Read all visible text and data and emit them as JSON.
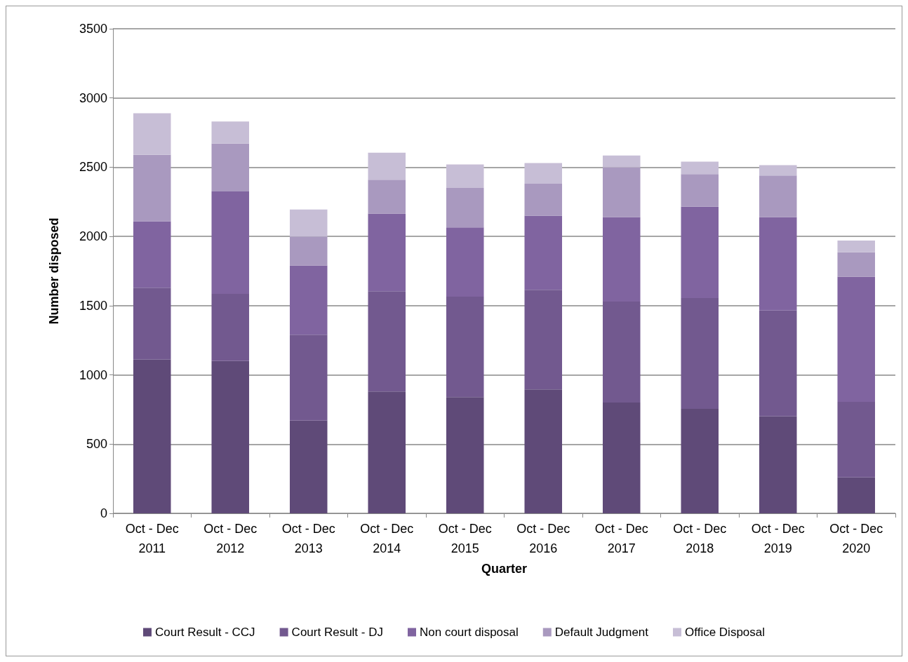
{
  "chart_data": {
    "type": "bar",
    "stacked": true,
    "xlabel": "Quarter",
    "ylabel": "Number disposed",
    "categories": [
      "Oct - Dec\n2011",
      "Oct - Dec\n2012",
      "Oct - Dec\n2013",
      "Oct - Dec\n2014",
      "Oct - Dec\n2015",
      "Oct - Dec\n2016",
      "Oct - Dec\n2017",
      "Oct - Dec\n2018",
      "Oct - Dec\n2019",
      "Oct - Dec\n2020"
    ],
    "series": [
      {
        "name": "Court Result - CCJ",
        "color": "#5f4a78",
        "values": [
          1110,
          1100,
          670,
          880,
          840,
          895,
          800,
          755,
          700,
          260
        ]
      },
      {
        "name": "Court Result - DJ",
        "color": "#72598f",
        "values": [
          520,
          485,
          620,
          725,
          725,
          720,
          730,
          800,
          765,
          545
        ]
      },
      {
        "name": "Non court disposal",
        "color": "#8064a0",
        "values": [
          480,
          740,
          500,
          560,
          500,
          535,
          610,
          660,
          675,
          905
        ]
      },
      {
        "name": "Default Judgment",
        "color": "#a999bf",
        "values": [
          480,
          345,
          210,
          245,
          285,
          230,
          360,
          235,
          300,
          175
        ]
      },
      {
        "name": "Office Disposal",
        "color": "#c7bed6",
        "values": [
          300,
          160,
          195,
          195,
          170,
          150,
          85,
          90,
          75,
          85
        ]
      }
    ],
    "ylim": [
      0,
      3500
    ],
    "yticks": [
      0,
      500,
      1000,
      1500,
      2000,
      2500,
      3000,
      3500
    ],
    "grid": "y",
    "legend": "bottom"
  }
}
